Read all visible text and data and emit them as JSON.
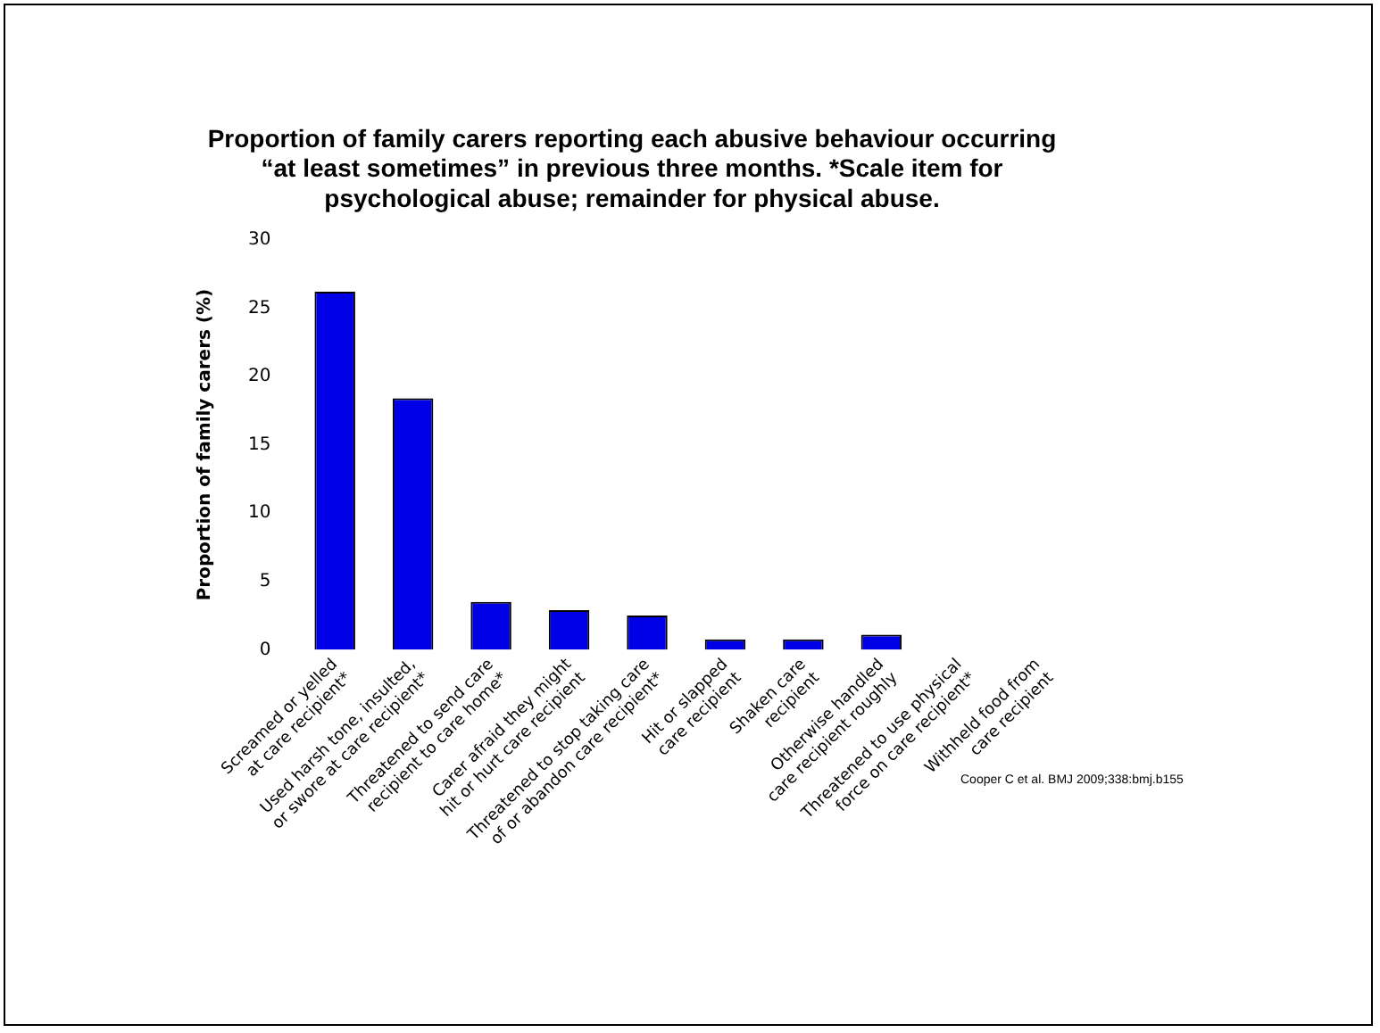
{
  "chart_data": {
    "type": "bar",
    "title": "Proportion of family carers reporting each abusive behaviour occurring\n“at least sometimes” in previous three months. *Scale item for\npsychological abuse; remainder for physical abuse.",
    "ylabel": "Proportion of family carers (%)",
    "categories": [
      "Screamed or yelled\nat care recipient*",
      "Used harsh tone, insulted,\nor swore at care recipient*",
      "Threatened to send care\nrecipient to care home*",
      "Carer afraid they might\nhit or hurt care recipient",
      "Threatened to stop taking care\nof or abandon care recipient*",
      "Hit or slapped\ncare recipient",
      "Shaken care\nrecipient",
      "Otherwise handled\ncare recipient roughly",
      "Threatened to use physical\nforce on care recipient*",
      "Withheld food from\ncare recipient"
    ],
    "values": [
      26.2,
      18.4,
      3.5,
      2.9,
      2.5,
      0.75,
      0.75,
      1.1,
      0,
      0
    ],
    "color": "#0000e6",
    "ylim": [
      0,
      30
    ],
    "yticks": [
      0,
      5,
      10,
      15,
      20,
      25,
      30
    ],
    "grid": false,
    "legend": false,
    "annotations": [
      "Cooper C et al. BMJ 2009;338:bmj.b155"
    ]
  }
}
